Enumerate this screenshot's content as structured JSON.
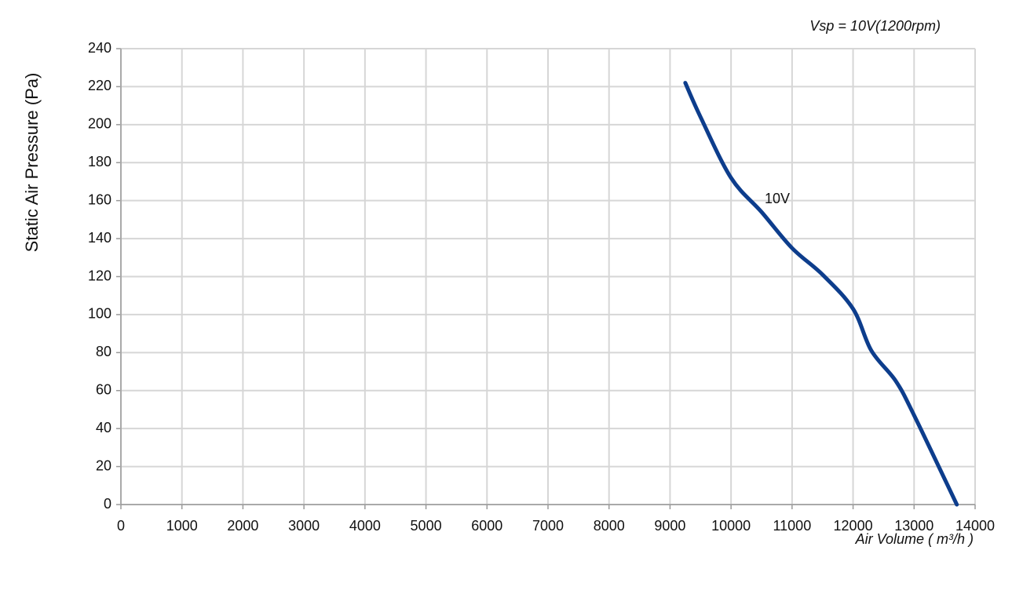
{
  "chart_data": {
    "type": "line",
    "title": "Vsp = 10V(1200rpm)",
    "x_label": "Air Volume ( m³/h )",
    "y_label": "Static Air Pressure  (Pa)",
    "series": [
      {
        "name": "10V",
        "color": "#0d3d8c",
        "x": [
          9250,
          9500,
          10000,
          10500,
          11000,
          11500,
          12000,
          12300,
          12700,
          13000,
          13700
        ],
        "values": [
          222,
          204,
          172,
          154,
          135,
          121,
          103,
          81,
          65,
          47,
          0
        ]
      }
    ],
    "xlim": [
      0,
      14000
    ],
    "xticks": [
      0,
      1000,
      2000,
      3000,
      4000,
      5000,
      6000,
      7000,
      8000,
      9000,
      10000,
      11000,
      12000,
      13000,
      14000
    ],
    "ylim": [
      0,
      240
    ],
    "yticks": [
      0,
      20,
      40,
      60,
      80,
      100,
      120,
      140,
      160,
      180,
      200,
      220,
      240
    ],
    "grid": true
  }
}
